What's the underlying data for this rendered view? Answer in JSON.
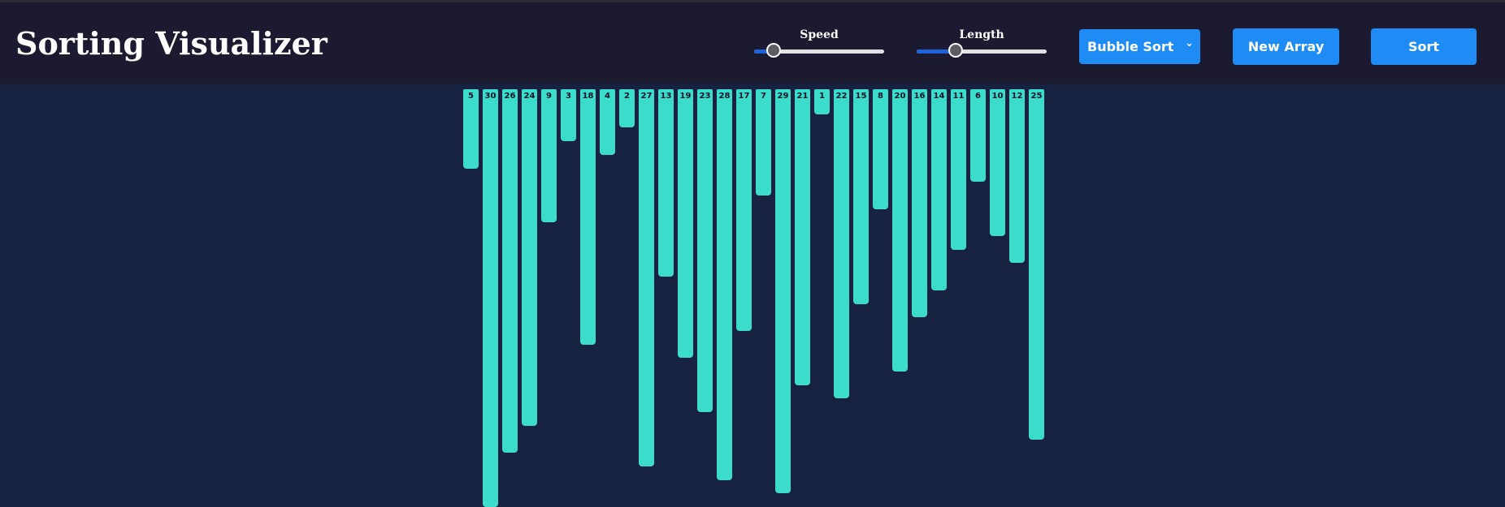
{
  "app": {
    "title": "Sorting Visualizer"
  },
  "controls": {
    "speed": {
      "label": "Speed",
      "value_fraction": 0.15
    },
    "length": {
      "label": "Length",
      "value_fraction": 0.3
    },
    "algorithm": {
      "selected": "Bubble Sort",
      "icon": "chevron-down-icon"
    },
    "new_array_label": "New Array",
    "sort_label": "Sort"
  },
  "colors": {
    "header_bg": "#1b1a30",
    "page_bg": "#172240",
    "bar": "#3bdccb",
    "accent": "#1e8cf4"
  },
  "array": [
    5,
    30,
    26,
    24,
    9,
    3,
    18,
    4,
    2,
    27,
    13,
    19,
    23,
    28,
    17,
    7,
    29,
    21,
    1,
    22,
    15,
    8,
    20,
    16,
    14,
    11,
    6,
    10,
    12,
    25
  ]
}
